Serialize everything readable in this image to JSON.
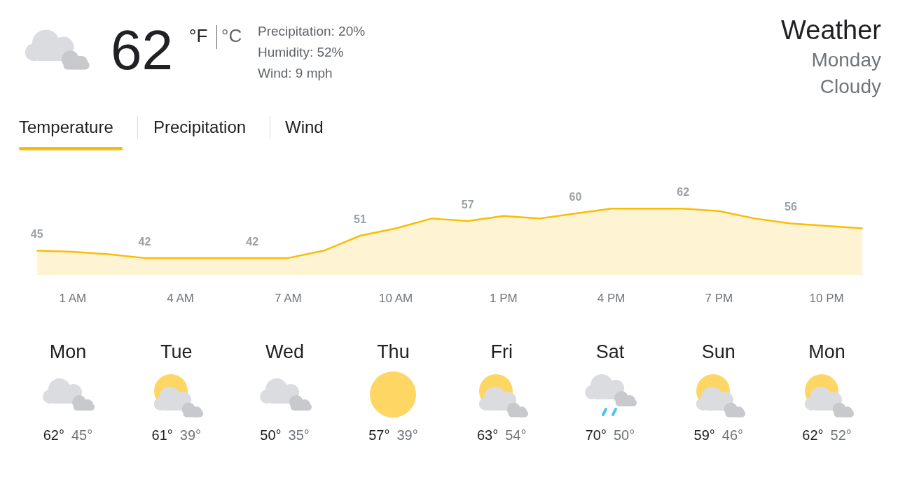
{
  "chart_data": [
    {
      "type": "area",
      "title": "Weather",
      "annotations": [
        "62",
        "°F",
        "°C",
        "Precipitation: 20%",
        "Humidity: 52%",
        "Wind: 9 mph",
        "Monday",
        "Cloudy",
        "Temperature",
        "Precipitation",
        "Wind"
      ],
      "categories": [
        null,
        "1 AM",
        null,
        null,
        "4 AM",
        null,
        null,
        "7 AM",
        null,
        null,
        "10 AM",
        null,
        null,
        "1 PM",
        null,
        null,
        "4 PM",
        null,
        null,
        "7 PM",
        null,
        null,
        "10 PM",
        null
      ],
      "values": [
        45,
        44.5,
        43.5,
        42,
        42,
        42,
        42,
        42,
        45,
        51,
        54,
        58,
        57,
        59,
        58,
        60,
        62,
        62,
        62,
        61,
        58,
        56,
        55,
        54
      ],
      "value_labels": [
        "45",
        null,
        null,
        "42",
        null,
        null,
        "42",
        null,
        null,
        "51",
        null,
        null,
        "57",
        null,
        null,
        "60",
        null,
        null,
        "62",
        null,
        null,
        "56",
        null,
        null
      ],
      "color": "#fbbc04",
      "tick_labels": "x",
      "marker": "none",
      "legend": false
    },
    {
      "type": "other",
      "categories": [
        "Mon",
        "Tue",
        "Wed",
        "Thu",
        "Fri",
        "Sat",
        "Sun",
        "Mon"
      ],
      "annotations": [
        "62°",
        "45°",
        "61°",
        "39°",
        "50°",
        "35°",
        "57°",
        "39°",
        "63°",
        "54°",
        "70°",
        "50°",
        "59°",
        "46°",
        "62°",
        "52°"
      ]
    }
  ]
}
